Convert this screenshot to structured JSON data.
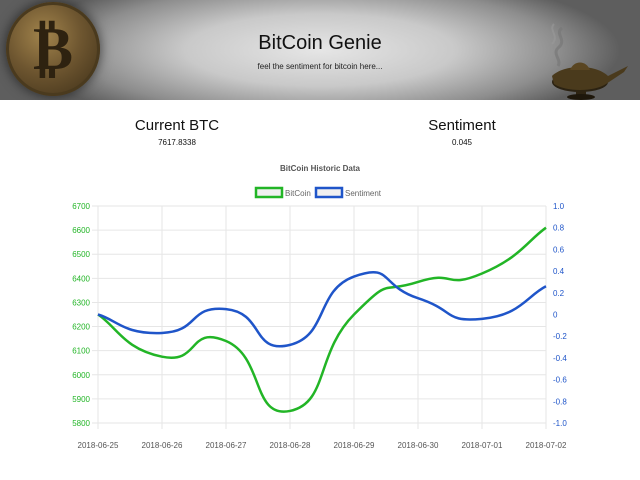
{
  "header": {
    "title": "BitCoin Genie",
    "subtitle": "feel the sentiment for bitcoin here...",
    "logo_icon": "bitcoin-coin-icon",
    "lamp_icon": "magic-lamp-icon"
  },
  "stats": {
    "btc_label": "Current BTC",
    "btc_value": "7617.8338",
    "sentiment_label": "Sentiment",
    "sentiment_value": "0.045"
  },
  "colors": {
    "bitcoin": "#22b526",
    "sentiment": "#1f55c9"
  },
  "chart_data": {
    "type": "line",
    "title": "BitCoin Historic Data",
    "x": [
      "2018-06-25",
      "2018-06-26",
      "2018-06-27",
      "2018-06-28",
      "2018-06-29",
      "2018-06-30",
      "2018-07-01",
      "2018-07-02"
    ],
    "series": [
      {
        "name": "BitCoin",
        "axis": "left",
        "values": [
          6250,
          6075,
          6140,
          5850,
          6250,
          6385,
          6420,
          6610
        ]
      },
      {
        "name": "Sentiment",
        "axis": "right",
        "values": [
          0.0,
          -0.17,
          0.05,
          -0.28,
          0.35,
          0.15,
          -0.04,
          0.26
        ]
      }
    ],
    "left_axis": {
      "ylim": [
        5800,
        6700
      ],
      "ticks": [
        5800,
        5900,
        6000,
        6100,
        6200,
        6300,
        6400,
        6500,
        6600,
        6700
      ]
    },
    "right_axis": {
      "ylim": [
        -1.0,
        1.0
      ],
      "ticks": [
        "-1.0",
        "-0.8",
        "-0.6",
        "-0.4",
        "-0.2",
        "0",
        "0.2",
        "0.4",
        "0.6",
        "0.8",
        "1.0"
      ]
    },
    "grid": true,
    "legend": "top-center"
  }
}
